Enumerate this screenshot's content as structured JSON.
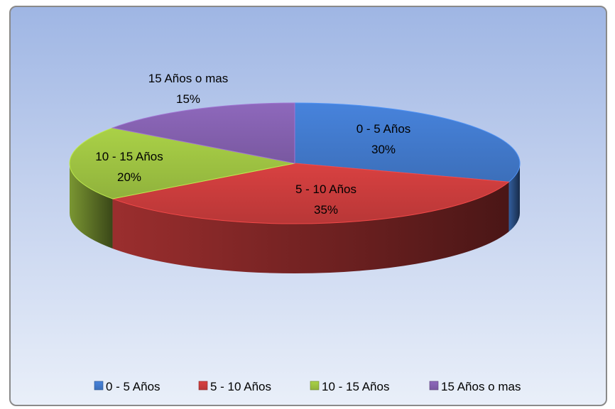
{
  "chart_data": {
    "type": "pie",
    "title": "",
    "categories": [
      "0 - 5 Años",
      "5 - 10 Años",
      "10 - 15 Años",
      "15 Años o mas"
    ],
    "values": [
      30,
      35,
      20,
      15
    ],
    "value_labels": [
      "30%",
      "35%",
      "20%",
      "15%"
    ],
    "legend_position": "bottom",
    "colors": [
      "#3f75c4",
      "#c23a3a",
      "#98bb3f",
      "#7f5da8"
    ]
  }
}
